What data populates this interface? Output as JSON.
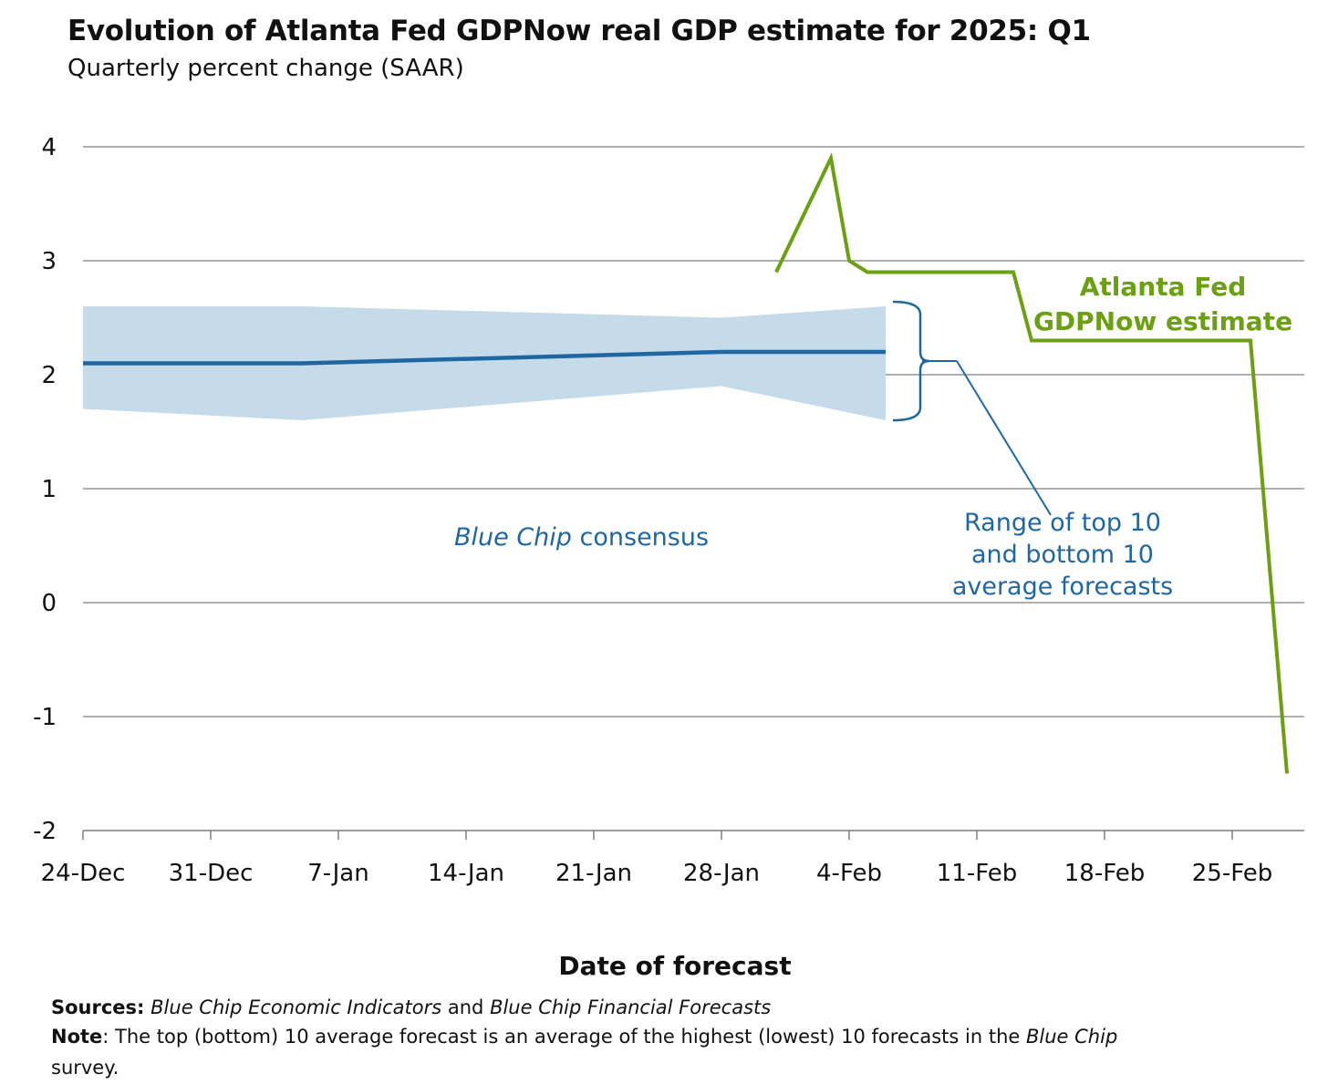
{
  "title": "Evolution of Atlanta Fed GDPNow real GDP estimate for 2025: Q1",
  "subtitle": "Quarterly percent change (SAAR)",
  "colors": {
    "gdpnow": "#6aa012",
    "consensus": "#1f67a3",
    "range_band": "#c5dbe9",
    "grid": "#7f7f7f"
  },
  "annotations": {
    "consensus_italic": "Blue Chip",
    "consensus_rest": "consensus",
    "range_line1": "Range of top 10",
    "range_line2": "and bottom 10",
    "range_line3": "average forecasts",
    "gdpnow_line1": "Atlanta Fed",
    "gdpnow_line2": "GDPNow estimate"
  },
  "footer": {
    "sources_label": "Sources:",
    "sources_part1": "Blue Chip Economic Indicators",
    "sources_and": "and",
    "sources_part2": "Blue Chip Financial Forecasts",
    "note_label": "Note",
    "note_text": ": The top (bottom) 10 average forecast is an average of the highest (lowest) 10 forecasts in the",
    "note_italic": "Blue Chip",
    "note_tail": "survey."
  },
  "chart_data": {
    "type": "line",
    "title": "Evolution of Atlanta Fed GDPNow real GDP estimate for 2025: Q1",
    "subtitle": "Quarterly percent change (SAAR)",
    "xlabel": "Date of forecast",
    "ylabel": "",
    "x_tick_labels": [
      "24-Dec",
      "31-Dec",
      "7-Jan",
      "14-Jan",
      "21-Jan",
      "28-Jan",
      "4-Feb",
      "11-Feb",
      "18-Feb",
      "25-Feb"
    ],
    "x_tick_dates": [
      "2024-12-24",
      "2024-12-31",
      "2025-01-07",
      "2025-01-14",
      "2025-01-21",
      "2025-01-28",
      "2025-02-04",
      "2025-02-11",
      "2025-02-18",
      "2025-02-25"
    ],
    "xlim": [
      "2024-12-24",
      "2025-03-03"
    ],
    "ylim": [
      -2,
      4
    ],
    "yticks": [
      -2,
      -1,
      0,
      1,
      2,
      3,
      4
    ],
    "grid": true,
    "series": [
      {
        "name": "Atlanta Fed GDPNow estimate",
        "color": "#6aa012",
        "points": [
          [
            "2025-01-31",
            2.9
          ],
          [
            "2025-02-03",
            3.9
          ],
          [
            "2025-02-03",
            3.9
          ],
          [
            "2025-02-04",
            3.0
          ],
          [
            "2025-02-05",
            2.9
          ],
          [
            "2025-02-13",
            2.9
          ],
          [
            "2025-02-14",
            2.3
          ],
          [
            "2025-02-26",
            2.3
          ],
          [
            "2025-02-28",
            -1.5
          ]
        ]
      },
      {
        "name": "Blue Chip consensus",
        "color": "#1f67a3",
        "points": [
          [
            "2024-12-24",
            2.1
          ],
          [
            "2025-01-05",
            2.1
          ],
          [
            "2025-01-28",
            2.2
          ],
          [
            "2025-02-06",
            2.2
          ]
        ]
      },
      {
        "name": "Range of top 10 and bottom 10 average forecasts",
        "type": "area_band",
        "color": "#c5dbe9",
        "upper": [
          [
            "2024-12-24",
            2.6
          ],
          [
            "2025-01-05",
            2.6
          ],
          [
            "2025-01-28",
            2.5
          ],
          [
            "2025-02-06",
            2.6
          ]
        ],
        "lower": [
          [
            "2024-12-24",
            1.7
          ],
          [
            "2025-01-05",
            1.6
          ],
          [
            "2025-01-28",
            1.9
          ],
          [
            "2025-02-06",
            1.6
          ]
        ]
      }
    ]
  }
}
